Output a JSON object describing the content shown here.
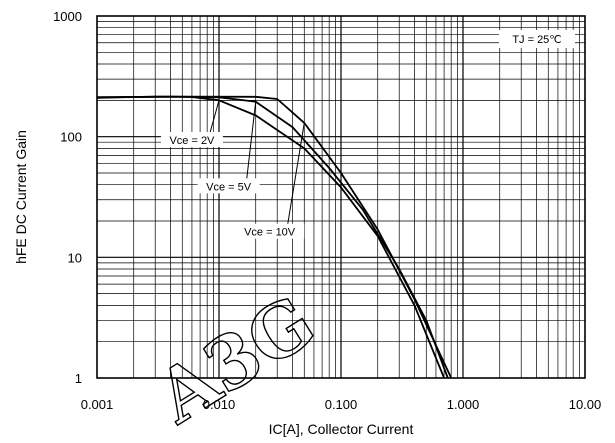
{
  "chart_data": {
    "type": "line",
    "title": "",
    "xlabel": "IC[A], Collector Current",
    "ylabel": "hFE DC Current Gain",
    "xscale": "log",
    "yscale": "log",
    "xlim": [
      0.001,
      10
    ],
    "ylim": [
      1,
      1000
    ],
    "grid": true,
    "x_tick_labels": [
      "0.001",
      "0.010",
      "0.100",
      "1.000",
      "10.00"
    ],
    "y_tick_labels": [
      "1",
      "10",
      "100",
      "1000"
    ],
    "condition_label": "TJ = 25℃",
    "series": [
      {
        "name": "Vce = 2V",
        "label_x": 0.006,
        "label_y": 92,
        "points": [
          [
            0.001,
            210
          ],
          [
            0.003,
            215
          ],
          [
            0.006,
            213
          ],
          [
            0.01,
            200
          ],
          [
            0.02,
            150
          ],
          [
            0.05,
            80
          ],
          [
            0.1,
            38
          ],
          [
            0.2,
            15
          ],
          [
            0.4,
            4
          ],
          [
            0.7,
            1
          ]
        ]
      },
      {
        "name": "Vce = 5V",
        "label_x": 0.012,
        "label_y": 38,
        "points": [
          [
            0.001,
            212
          ],
          [
            0.004,
            215
          ],
          [
            0.01,
            212
          ],
          [
            0.02,
            195
          ],
          [
            0.04,
            120
          ],
          [
            0.08,
            55
          ],
          [
            0.15,
            25
          ],
          [
            0.3,
            8
          ],
          [
            0.5,
            3
          ],
          [
            0.75,
            1
          ]
        ]
      },
      {
        "name": "Vce = 10V",
        "label_x": 0.026,
        "label_y": 16,
        "points": [
          [
            0.001,
            212
          ],
          [
            0.005,
            215
          ],
          [
            0.02,
            214
          ],
          [
            0.03,
            205
          ],
          [
            0.05,
            130
          ],
          [
            0.1,
            50
          ],
          [
            0.2,
            17
          ],
          [
            0.4,
            4.5
          ],
          [
            0.8,
            1
          ]
        ]
      }
    ]
  },
  "watermark": "A3G"
}
